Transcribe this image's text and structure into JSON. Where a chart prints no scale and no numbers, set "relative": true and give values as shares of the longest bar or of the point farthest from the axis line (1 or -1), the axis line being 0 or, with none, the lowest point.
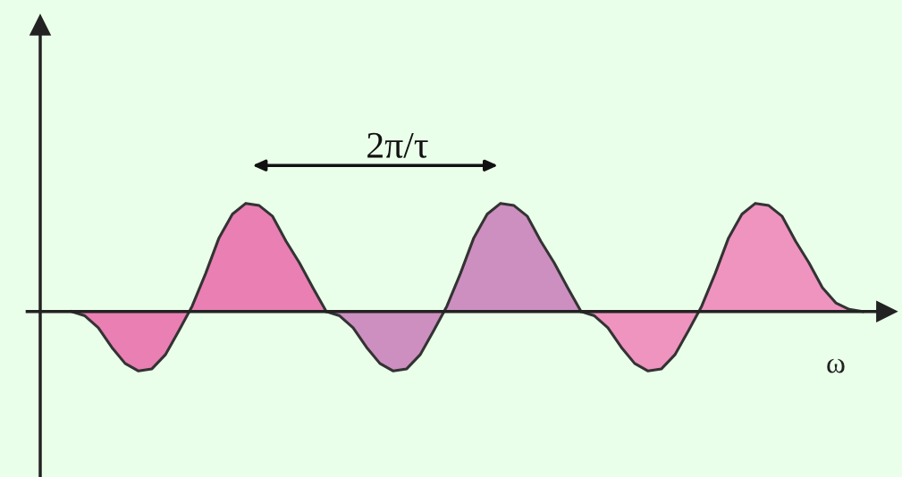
{
  "chart_data": {
    "type": "area",
    "relative": true,
    "xlabel": "ω",
    "annotations": [
      "2π/τ"
    ],
    "categories": [
      null,
      null,
      null,
      null,
      null,
      null,
      null,
      null,
      null,
      null,
      null,
      null,
      null,
      null,
      null,
      null,
      null,
      null,
      null,
      null,
      null,
      null,
      null,
      null,
      null,
      null,
      null,
      null,
      null,
      null,
      null,
      null,
      null,
      null,
      null,
      null,
      null,
      null,
      null,
      null,
      null,
      null,
      null,
      null,
      null,
      null,
      null,
      null,
      null,
      null,
      null,
      null,
      null,
      null,
      null,
      null,
      null,
      null,
      null,
      null
    ],
    "series": [
      {
        "color": "#e97fb2",
        "values": [
          0,
          -0.04,
          -0.15,
          -0.33,
          -0.48,
          -0.55,
          -0.53,
          -0.4,
          -0.18,
          0.05,
          0.35,
          0.68,
          0.9,
          1.0,
          0.98,
          0.88,
          0.65,
          0.45,
          0.22,
          0,
          null,
          null,
          null,
          null,
          null,
          null,
          null,
          null,
          null,
          null,
          null,
          null,
          null,
          null,
          null,
          null,
          null,
          null,
          null,
          null,
          null,
          null,
          null,
          null,
          null,
          null,
          null,
          null,
          null,
          null,
          null,
          null,
          null,
          null,
          null,
          null,
          null,
          null,
          null,
          null
        ]
      },
      {
        "color": "#cc8fc0",
        "values": [
          null,
          null,
          null,
          null,
          null,
          null,
          null,
          null,
          null,
          null,
          null,
          null,
          null,
          null,
          null,
          null,
          null,
          null,
          null,
          0,
          -0.04,
          -0.15,
          -0.33,
          -0.48,
          -0.55,
          -0.53,
          -0.4,
          -0.18,
          0.05,
          0.35,
          0.68,
          0.9,
          1.0,
          0.98,
          0.88,
          0.65,
          0.45,
          0.22,
          0,
          null,
          null,
          null,
          null,
          null,
          null,
          null,
          null,
          null,
          null,
          null,
          null,
          null,
          null,
          null,
          null,
          null,
          null,
          null,
          null,
          null
        ]
      },
      {
        "color": "#ef93bf",
        "values": [
          null,
          null,
          null,
          null,
          null,
          null,
          null,
          null,
          null,
          null,
          null,
          null,
          null,
          null,
          null,
          null,
          null,
          null,
          null,
          null,
          null,
          null,
          null,
          null,
          null,
          null,
          null,
          null,
          null,
          null,
          null,
          null,
          null,
          null,
          null,
          null,
          null,
          null,
          0,
          -0.04,
          -0.15,
          -0.33,
          -0.48,
          -0.55,
          -0.53,
          -0.4,
          -0.18,
          0.05,
          0.35,
          0.68,
          0.9,
          1.0,
          0.98,
          0.88,
          0.65,
          0.45,
          0.22,
          0.08,
          0.02,
          0
        ]
      }
    ]
  }
}
